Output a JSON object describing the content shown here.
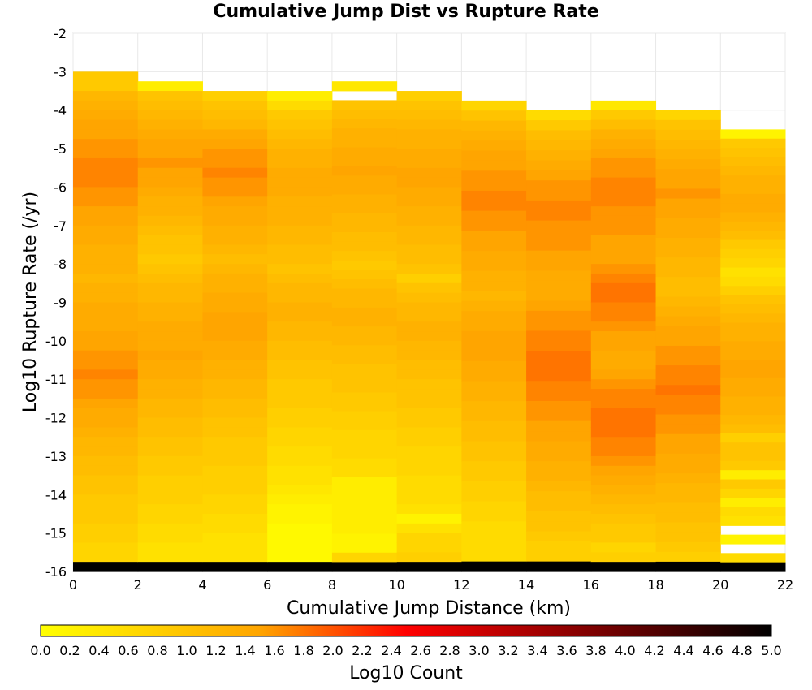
{
  "chart_data": {
    "type": "heatmap",
    "title": "Cumulative Jump Dist vs Rupture Rate",
    "xlabel": "Cumulative Jump Distance (km)",
    "ylabel": "Log10 Rupture Rate (/yr)",
    "xlim": [
      0,
      22
    ],
    "ylim": [
      -16,
      -2
    ],
    "x_ticks": [
      "0",
      "2",
      "4",
      "6",
      "8",
      "10",
      "12",
      "14",
      "16",
      "18",
      "20",
      "22"
    ],
    "y_ticks": [
      "-2",
      "-3",
      "-4",
      "-5",
      "-6",
      "-7",
      "-8",
      "-9",
      "-10",
      "-11",
      "-12",
      "-13",
      "-14",
      "-15",
      "-16"
    ],
    "x_bin_width": 2,
    "y_bin_height": 0.25,
    "x_bin_starts": [
      0,
      2,
      4,
      6,
      8,
      10,
      12,
      14,
      16,
      18,
      20
    ],
    "y_bins_top": -3.0,
    "columns": [
      {
        "y_top": -3.0,
        "values": [
          0.9,
          0.9,
          1.2,
          1.3,
          1.4,
          1.5,
          1.5,
          1.6,
          1.6,
          1.7,
          1.7,
          1.7,
          1.6,
          1.6,
          1.5,
          1.5,
          1.4,
          1.4,
          1.3,
          1.3,
          1.3,
          1.2,
          1.3,
          1.3,
          1.4,
          1.4,
          1.4,
          1.5,
          1.5,
          1.6,
          1.6,
          1.7,
          1.6,
          1.6,
          1.5,
          1.4,
          1.4,
          1.3,
          1.2,
          1.2,
          1.1,
          1.1,
          1.0,
          1.0,
          0.9,
          0.9,
          0.9,
          0.8,
          0.8,
          0.7,
          0.7,
          5.0
        ]
      },
      {
        "y_top": -3.25,
        "values": [
          0.3,
          1.0,
          1.1,
          1.2,
          1.3,
          1.4,
          1.5,
          1.5,
          1.6,
          1.5,
          1.5,
          1.4,
          1.3,
          1.3,
          1.2,
          1.1,
          1.0,
          1.0,
          0.9,
          1.0,
          1.1,
          1.2,
          1.2,
          1.3,
          1.3,
          1.4,
          1.4,
          1.4,
          1.5,
          1.4,
          1.4,
          1.3,
          1.3,
          1.2,
          1.2,
          1.1,
          1.1,
          1.0,
          1.0,
          0.9,
          0.9,
          0.8,
          0.8,
          0.8,
          0.7,
          0.7,
          0.6,
          0.6,
          0.5,
          0.5,
          5.0
        ]
      },
      {
        "y_top": -3.5,
        "values": [
          0.8,
          1.0,
          1.1,
          1.2,
          1.4,
          1.5,
          1.6,
          1.6,
          1.7,
          1.6,
          1.6,
          1.5,
          1.4,
          1.4,
          1.3,
          1.3,
          1.2,
          1.1,
          1.2,
          1.3,
          1.3,
          1.4,
          1.4,
          1.5,
          1.5,
          1.5,
          1.4,
          1.4,
          1.3,
          1.3,
          1.2,
          1.2,
          1.1,
          1.1,
          1.0,
          1.0,
          0.9,
          0.9,
          0.9,
          0.8,
          0.8,
          0.8,
          0.7,
          0.7,
          0.6,
          0.6,
          0.5,
          0.5,
          0.5,
          5.0
        ]
      },
      {
        "y_top": -3.5,
        "values": [
          0.3,
          0.6,
          0.9,
          1.0,
          1.1,
          1.2,
          1.3,
          1.3,
          1.4,
          1.4,
          1.4,
          1.3,
          1.3,
          1.3,
          1.2,
          1.2,
          1.1,
          1.1,
          1.0,
          1.1,
          1.2,
          1.2,
          1.3,
          1.3,
          1.2,
          1.2,
          1.1,
          1.1,
          1.0,
          1.0,
          0.9,
          0.9,
          0.9,
          0.8,
          0.8,
          0.7,
          0.7,
          0.6,
          0.6,
          0.5,
          0.5,
          0.4,
          0.3,
          0.2,
          0.2,
          0.1,
          0.1,
          0.1,
          0.1,
          5.0
        ]
      },
      {
        "y_top": -3.25,
        "values": [
          0.4,
          -1,
          1.0,
          1.1,
          1.2,
          1.3,
          1.3,
          1.4,
          1.4,
          1.5,
          1.4,
          1.4,
          1.3,
          1.3,
          1.2,
          1.2,
          1.1,
          1.1,
          1.0,
          0.9,
          1.0,
          1.1,
          1.2,
          1.2,
          1.3,
          1.3,
          1.2,
          1.2,
          1.1,
          1.1,
          1.0,
          1.0,
          1.0,
          0.9,
          0.9,
          0.8,
          0.8,
          0.7,
          0.7,
          0.7,
          0.6,
          0.6,
          0.3,
          0.3,
          0.3,
          0.3,
          0.3,
          0.3,
          0.2,
          0.2,
          0.7,
          5.0
        ]
      },
      {
        "y_top": -3.5,
        "values": [
          0.8,
          1.0,
          1.1,
          1.2,
          1.3,
          1.3,
          1.4,
          1.4,
          1.5,
          1.5,
          1.4,
          1.4,
          1.3,
          1.3,
          1.2,
          1.2,
          1.1,
          1.1,
          1.0,
          0.8,
          1.0,
          1.1,
          1.2,
          1.2,
          1.3,
          1.3,
          1.2,
          1.2,
          1.1,
          1.1,
          1.0,
          1.0,
          1.0,
          0.9,
          0.9,
          0.8,
          0.8,
          0.7,
          0.7,
          0.7,
          0.6,
          0.6,
          0.6,
          0.5,
          0.2,
          0.5,
          0.7,
          0.7,
          0.8,
          5.0
        ]
      },
      {
        "y_top": -3.75,
        "values": [
          0.7,
          1.0,
          1.2,
          1.3,
          1.4,
          1.5,
          1.5,
          1.6,
          1.6,
          1.7,
          1.7,
          1.6,
          1.6,
          1.5,
          1.5,
          1.4,
          1.4,
          1.3,
          1.3,
          1.2,
          1.3,
          1.4,
          1.4,
          1.5,
          1.5,
          1.5,
          1.4,
          1.4,
          1.3,
          1.3,
          1.2,
          1.2,
          1.1,
          1.1,
          1.0,
          1.0,
          0.9,
          0.9,
          0.8,
          0.8,
          0.7,
          0.7,
          0.6,
          0.6,
          0.6,
          0.6,
          5.0
        ]
      },
      {
        "y_top": -4.0,
        "values": [
          0.6,
          0.9,
          1.1,
          1.2,
          1.3,
          1.4,
          1.5,
          1.6,
          1.6,
          1.7,
          1.7,
          1.6,
          1.6,
          1.6,
          1.5,
          1.5,
          1.4,
          1.4,
          1.4,
          1.5,
          1.6,
          1.6,
          1.7,
          1.7,
          1.8,
          1.8,
          1.8,
          1.7,
          1.7,
          1.6,
          1.6,
          1.5,
          1.5,
          1.4,
          1.4,
          1.3,
          1.3,
          1.2,
          1.1,
          1.1,
          1.0,
          1.0,
          0.9,
          0.8,
          0.8,
          5.0
        ]
      },
      {
        "y_top": -3.75,
        "values": [
          0.4,
          0.9,
          1.1,
          1.3,
          1.4,
          1.5,
          1.6,
          1.6,
          1.7,
          1.7,
          1.7,
          1.6,
          1.6,
          1.6,
          1.5,
          1.5,
          1.5,
          1.6,
          1.7,
          1.8,
          1.8,
          1.7,
          1.7,
          1.6,
          1.5,
          1.5,
          1.4,
          1.4,
          1.5,
          1.6,
          1.7,
          1.7,
          1.8,
          1.8,
          1.8,
          1.7,
          1.7,
          1.6,
          1.5,
          1.4,
          1.3,
          1.2,
          1.1,
          1.0,
          0.9,
          0.9,
          0.7,
          0.8,
          5.0
        ]
      },
      {
        "y_top": -4.0,
        "values": [
          0.7,
          1.0,
          1.1,
          1.2,
          1.3,
          1.4,
          1.5,
          1.5,
          1.6,
          1.5,
          1.5,
          1.4,
          1.4,
          1.3,
          1.3,
          1.2,
          1.2,
          1.1,
          1.1,
          1.2,
          1.3,
          1.4,
          1.5,
          1.5,
          1.6,
          1.6,
          1.7,
          1.7,
          1.8,
          1.7,
          1.7,
          1.6,
          1.6,
          1.5,
          1.5,
          1.4,
          1.4,
          1.3,
          1.2,
          1.2,
          1.1,
          1.1,
          1.0,
          1.0,
          0.9,
          0.8,
          5.0
        ]
      },
      {
        "y_top": -4.5,
        "values": [
          0.2,
          0.9,
          1.0,
          1.1,
          1.2,
          1.3,
          1.3,
          1.4,
          1.4,
          1.3,
          1.2,
          1.1,
          0.9,
          0.8,
          0.7,
          0.5,
          0.6,
          0.8,
          1.0,
          1.1,
          1.2,
          1.3,
          1.3,
          1.4,
          1.4,
          1.5,
          1.5,
          1.4,
          1.4,
          1.3,
          1.3,
          1.2,
          1.1,
          0.8,
          1.0,
          1.0,
          0.9,
          0.3,
          0.9,
          0.7,
          0.3,
          0.6,
          0.5,
          -1,
          0.2,
          -1,
          0.6,
          5.0
        ]
      }
    ],
    "colorbar": {
      "label": "Log10 Count",
      "range": [
        0.0,
        5.0
      ],
      "ticks": [
        "0.0",
        "0.2",
        "0.4",
        "0.6",
        "0.8",
        "1.0",
        "1.2",
        "1.4",
        "1.6",
        "1.8",
        "2.0",
        "2.2",
        "2.4",
        "2.6",
        "2.8",
        "3.0",
        "3.2",
        "3.4",
        "3.6",
        "3.8",
        "4.0",
        "4.2",
        "4.4",
        "4.6",
        "4.8",
        "5.0"
      ],
      "colors": [
        "#ffff00",
        "#ffa500",
        "#ff0000",
        "#800000",
        "#000000"
      ],
      "color_stops": [
        0.0,
        0.3,
        0.5,
        0.75,
        1.0
      ]
    },
    "grid": true
  }
}
